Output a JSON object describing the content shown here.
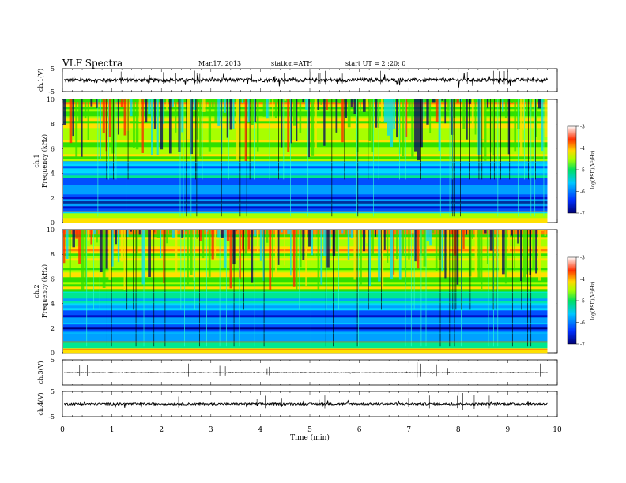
{
  "header": {
    "title": "VLF  Spectra",
    "date": "Mar.17, 2013",
    "station": "station=ATH",
    "start": "start  UT  =   2  :20: 0"
  },
  "chart_data": [
    {
      "id": "ch1-waveform",
      "type": "line",
      "ylabel": "ch.1(V)",
      "xlim": [
        0,
        10
      ],
      "ylim": [
        -5,
        5
      ],
      "yticks": [
        "5",
        "-5"
      ],
      "baseline": 0,
      "data_end": 9.8,
      "amplitude_typical": 0.8,
      "color": "#000000"
    },
    {
      "id": "ch1-spectrogram",
      "type": "heatmap",
      "ylabel": "ch.1\nFrequency (kHz)",
      "xlim": [
        0,
        10
      ],
      "ylim": [
        0,
        10
      ],
      "yticks": [
        "0",
        "2",
        "4",
        "6",
        "8",
        "10"
      ],
      "data_end": 9.8,
      "colorbar": {
        "label": "log(PSD)(V²/Hz)",
        "range": [
          -7,
          -3
        ],
        "ticks": [
          "-3",
          "-4",
          "-5",
          "-6",
          "-7"
        ],
        "colors": [
          "#000070",
          "#0030ff",
          "#00c8ff",
          "#00e060",
          "#a8ff00",
          "#ffd800",
          "#ff3000",
          "#ffffff"
        ]
      }
    },
    {
      "id": "ch2-spectrogram",
      "type": "heatmap",
      "ylabel": "ch.2\nFrequency (kHz)",
      "xlim": [
        0,
        10
      ],
      "ylim": [
        0,
        10
      ],
      "yticks": [
        "0",
        "2",
        "4",
        "6",
        "8",
        "10"
      ],
      "data_end": 9.8,
      "colorbar": {
        "label": "log(PSD)(V²/Hz)",
        "range": [
          -7,
          -3
        ],
        "ticks": [
          "-3",
          "-4",
          "-5",
          "-6",
          "-7"
        ]
      }
    },
    {
      "id": "ch3-waveform",
      "type": "line",
      "ylabel": "ch.3(V)",
      "xlim": [
        0,
        10
      ],
      "ylim": [
        -5,
        5
      ],
      "yticks": [
        "5"
      ],
      "baseline": 0,
      "data_end": 9.8,
      "amplitude_typical": 0.1,
      "color": "#000000"
    },
    {
      "id": "ch4-waveform",
      "type": "line",
      "ylabel": "ch.4(V)",
      "xlim": [
        0,
        10
      ],
      "ylim": [
        -5,
        5
      ],
      "yticks": [
        "5",
        "-5"
      ],
      "baseline": 0,
      "data_end": 9.8,
      "amplitude_typical": 0.4,
      "color": "#000000"
    }
  ],
  "xaxis": {
    "label": "Time  (min)",
    "ticks": [
      "0",
      "1",
      "2",
      "3",
      "4",
      "5",
      "6",
      "7",
      "8",
      "9",
      "10"
    ]
  }
}
